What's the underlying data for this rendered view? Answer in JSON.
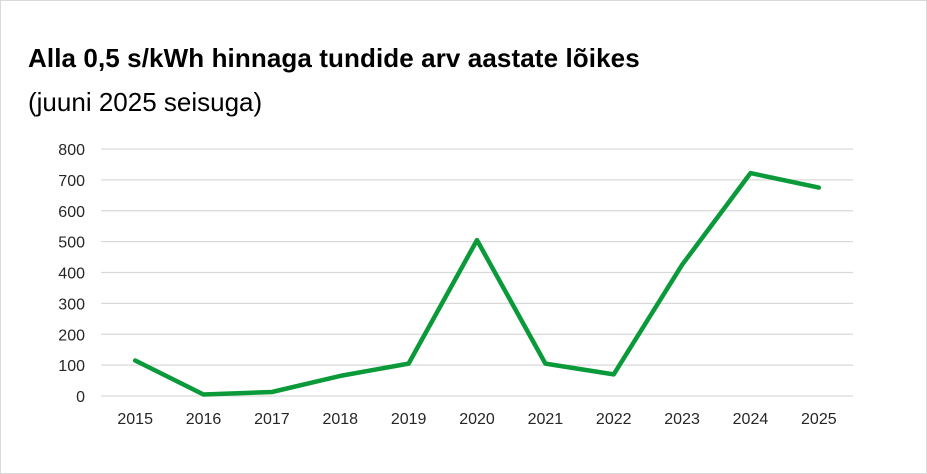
{
  "chart_data": {
    "type": "line",
    "title": "Alla 0,5 s/kWh hinnaga tundide arv aastate lõikes",
    "subtitle": "(juuni 2025 seisuga)",
    "xlabel": "",
    "ylabel": "",
    "categories": [
      "2015",
      "2016",
      "2017",
      "2018",
      "2019",
      "2020",
      "2021",
      "2022",
      "2023",
      "2024",
      "2025"
    ],
    "series": [
      {
        "values": [
          115,
          5,
          13,
          65,
          105,
          505,
          105,
          70,
          425,
          722,
          675
        ]
      }
    ],
    "ylim": [
      0,
      800
    ],
    "yticks": [
      0,
      100,
      200,
      300,
      400,
      500,
      600,
      700,
      800
    ],
    "grid": true,
    "legend": "none",
    "line_color": "#0a9a3a",
    "grid_color": "#d9d9d9"
  }
}
